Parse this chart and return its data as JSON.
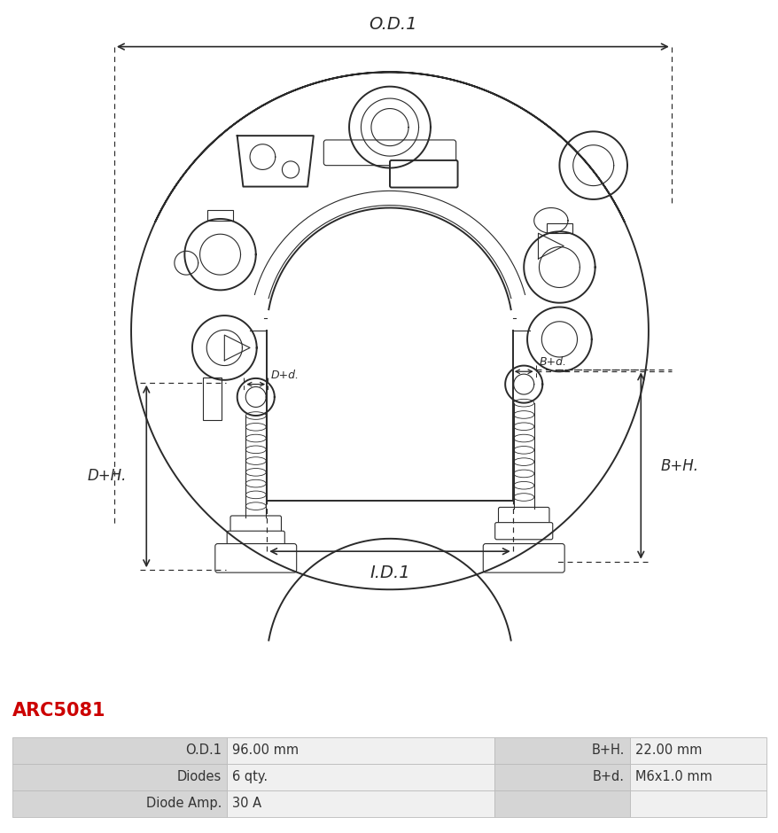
{
  "title_text": "ARC5081",
  "title_color": "#cc0000",
  "title_fontsize": 15,
  "bg_color": "#ffffff",
  "drawing_color": "#2a2a2a",
  "table_data": [
    [
      "O.D.1",
      "96.00 mm",
      "B+H.",
      "22.00 mm"
    ],
    [
      "Diodes",
      "6 qty.",
      "B+d.",
      "M6x1.0 mm"
    ],
    [
      "Diode Amp.",
      "30 A",
      "",
      ""
    ]
  ],
  "od1_label": "O.D.1",
  "id1_label": "I.D.1",
  "dh_label": "D+H.",
  "bh_label": "B+H.",
  "dd_label": "D+d.",
  "bd_label": "B+d.",
  "label_bg": "#d5d5d5",
  "value_bg": "#f0f0f0",
  "border_color": "#bbbbbb"
}
